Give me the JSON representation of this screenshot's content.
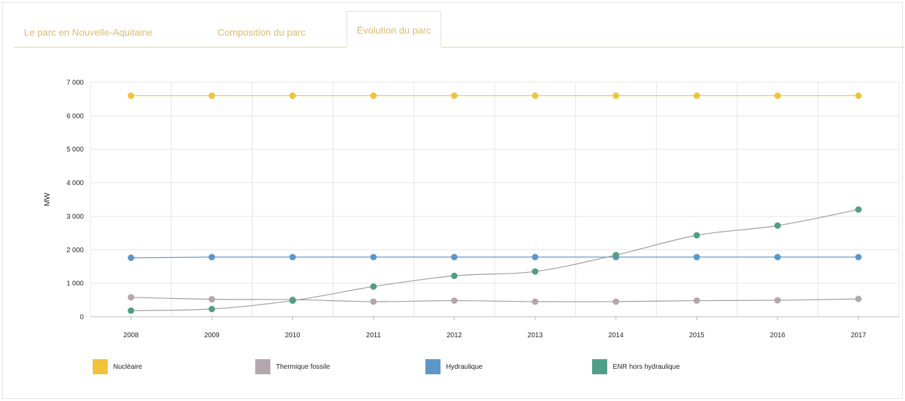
{
  "tabs": [
    {
      "label": "Le parc en Nouvelle-Aquitaine",
      "active": false
    },
    {
      "label": "Composition du parc",
      "active": false
    },
    {
      "label": "Évolution du parc",
      "active": true
    }
  ],
  "chart_data": {
    "type": "line",
    "title": "",
    "xlabel": "",
    "ylabel": "MW",
    "categories": [
      "2008",
      "2009",
      "2010",
      "2011",
      "2012",
      "2013",
      "2014",
      "2015",
      "2016",
      "2017"
    ],
    "ylim": [
      0,
      7000
    ],
    "yticks": [
      0,
      1000,
      2000,
      3000,
      4000,
      5000,
      6000,
      7000
    ],
    "ytick_labels": [
      "0",
      "1 000",
      "2 000",
      "3 000",
      "4 000",
      "5 000",
      "6 000",
      "7 000"
    ],
    "grid": true,
    "legend_position": "bottom",
    "series": [
      {
        "name": "Nucléaire",
        "color": "#f2c23a",
        "values": [
          6600,
          6600,
          6600,
          6600,
          6600,
          6600,
          6600,
          6600,
          6600,
          6600
        ]
      },
      {
        "name": "Thermique fossile",
        "color": "#b4a6ad",
        "values": [
          580,
          520,
          510,
          450,
          480,
          450,
          450,
          480,
          490,
          530
        ]
      },
      {
        "name": "Hydraulique",
        "color": "#5b97c7",
        "values": [
          1760,
          1780,
          1780,
          1780,
          1780,
          1780,
          1780,
          1780,
          1780,
          1780
        ]
      },
      {
        "name": "ENR hors hydraulique",
        "color": "#4f9e86",
        "values": [
          180,
          230,
          480,
          900,
          1220,
          1350,
          1840,
          2430,
          2720,
          3200
        ]
      }
    ]
  }
}
